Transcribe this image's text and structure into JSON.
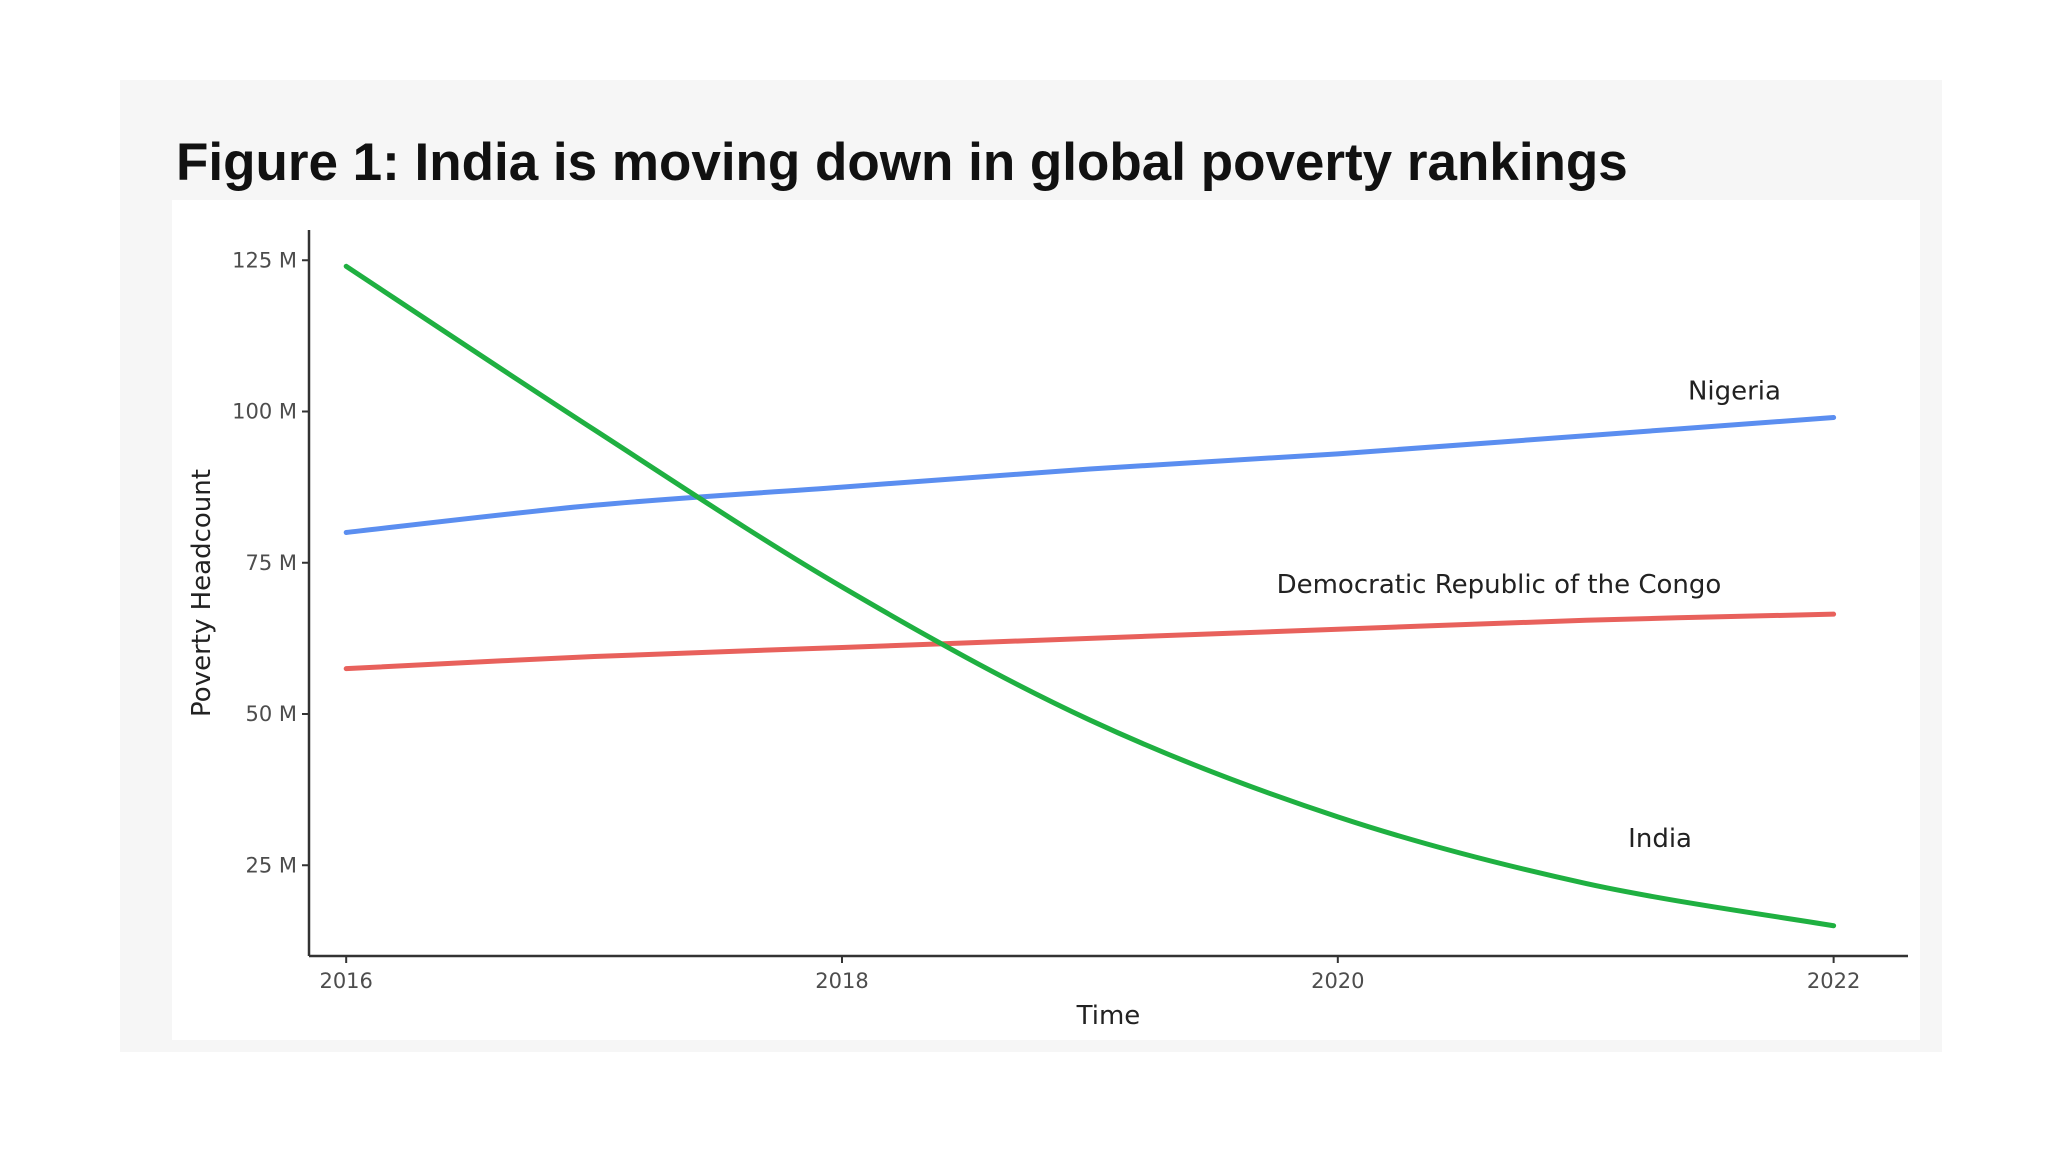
{
  "figure": {
    "title": "Figure 1: India is moving down in global poverty rankings"
  },
  "chart_data": {
    "type": "line",
    "title": "Figure 1: India is moving down in global poverty rankings",
    "xlabel": "Time",
    "ylabel": "Poverty Headcount",
    "xlim": [
      2015.85,
      2022.3
    ],
    "ylim": [
      10,
      130
    ],
    "x_ticks": [
      {
        "value": 2016,
        "label": "2016"
      },
      {
        "value": 2018,
        "label": "2018"
      },
      {
        "value": 2020,
        "label": "2020"
      },
      {
        "value": 2022,
        "label": "2022"
      }
    ],
    "y_ticks": [
      {
        "value": 25,
        "label": "25 M"
      },
      {
        "value": 50,
        "label": "50 M"
      },
      {
        "value": 75,
        "label": "75 M"
      },
      {
        "value": 100,
        "label": "100 M"
      },
      {
        "value": 125,
        "label": "125 M"
      }
    ],
    "grid": false,
    "legend": "direct-labels",
    "series": [
      {
        "name": "Nigeria",
        "label": "Nigeria",
        "color": "#5b8ef0",
        "label_at": {
          "x": 2021.6,
          "y": 102
        },
        "x": [
          2016,
          2017,
          2018,
          2019,
          2020,
          2021,
          2022
        ],
        "y": [
          80,
          84.5,
          87.5,
          90.5,
          93,
          96,
          99
        ]
      },
      {
        "name": "Democratic Republic of the Congo",
        "label": "Democratic Republic of the Congo",
        "color": "#e8615c",
        "label_at": {
          "x": 2020.65,
          "y": 70
        },
        "x": [
          2016,
          2017,
          2018,
          2019,
          2020,
          2021,
          2022
        ],
        "y": [
          57.5,
          59.5,
          61,
          62.5,
          64,
          65.5,
          66.5
        ]
      },
      {
        "name": "India",
        "label": "India",
        "color": "#1fb041",
        "label_at": {
          "x": 2021.3,
          "y": 28
        },
        "x": [
          2016,
          2017,
          2018,
          2019,
          2020,
          2021,
          2022
        ],
        "y": [
          124,
          97,
          71,
          49,
          33,
          22,
          15
        ]
      }
    ]
  }
}
